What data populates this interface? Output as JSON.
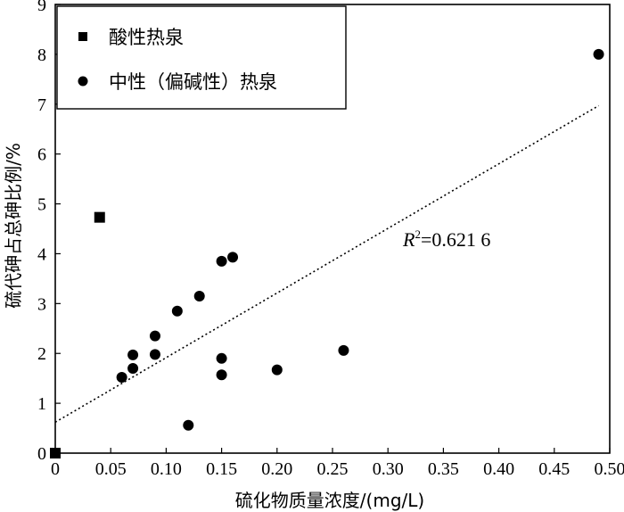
{
  "chart_data": {
    "type": "scatter",
    "xlabel": "硫化物质量浓度/(mg/L)",
    "ylabel": "硫代砷占总砷比例/%",
    "xlim": [
      0,
      0.5
    ],
    "ylim": [
      0,
      9
    ],
    "x_ticks": [
      "0",
      "0.05",
      "0.10",
      "0.15",
      "0.20",
      "0.25",
      "0.30",
      "0.35",
      "0.40",
      "0.45",
      "0.50"
    ],
    "y_ticks": [
      "0",
      "1",
      "2",
      "3",
      "4",
      "5",
      "6",
      "7",
      "8",
      "9"
    ],
    "grid": false,
    "legend_position": "top-left",
    "series": [
      {
        "name": "酸性热泉",
        "marker": "square",
        "color": "#000000",
        "points": [
          {
            "x": 0.04,
            "y": 4.73
          },
          {
            "x": 0.0,
            "y": 0.0
          }
        ]
      },
      {
        "name": "中性（偏碱性）热泉",
        "marker": "circle",
        "color": "#000000",
        "points": [
          {
            "x": 0.06,
            "y": 1.52
          },
          {
            "x": 0.07,
            "y": 1.7
          },
          {
            "x": 0.07,
            "y": 1.97
          },
          {
            "x": 0.09,
            "y": 1.98
          },
          {
            "x": 0.09,
            "y": 2.35
          },
          {
            "x": 0.11,
            "y": 2.85
          },
          {
            "x": 0.12,
            "y": 0.56
          },
          {
            "x": 0.13,
            "y": 3.15
          },
          {
            "x": 0.15,
            "y": 3.85
          },
          {
            "x": 0.15,
            "y": 1.9
          },
          {
            "x": 0.15,
            "y": 1.57
          },
          {
            "x": 0.16,
            "y": 3.93
          },
          {
            "x": 0.2,
            "y": 1.67
          },
          {
            "x": 0.26,
            "y": 2.06
          },
          {
            "x": 0.49,
            "y": 8.0
          }
        ]
      }
    ],
    "trendline": {
      "style": "dotted",
      "x": [
        0.0,
        0.49
      ],
      "y": [
        0.62,
        6.97
      ]
    },
    "annotation": {
      "r_label": "R",
      "r_sup": "2",
      "value": "=0.621 6"
    }
  }
}
